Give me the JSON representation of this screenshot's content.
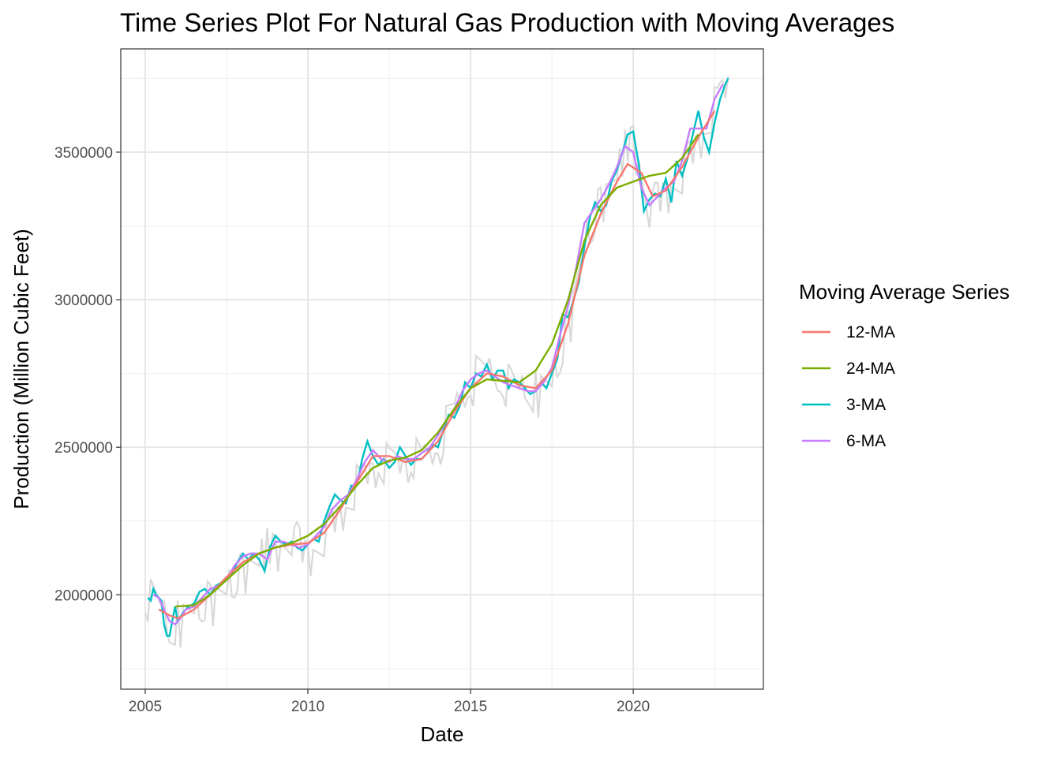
{
  "chart_data": {
    "type": "line",
    "title": "Time Series Plot For Natural Gas Production with Moving Averages",
    "xlabel": "Date",
    "ylabel": "Production (Million Cubic Feet)",
    "xlim": [
      2004.25,
      2024.0
    ],
    "ylim": [
      1680000,
      3850000
    ],
    "x_ticks": [
      2005,
      2010,
      2015,
      2020
    ],
    "y_ticks": [
      2000000,
      2500000,
      3000000,
      3500000
    ],
    "y_tick_labels": [
      "2000000",
      "2500000",
      "3000000",
      "3500000"
    ],
    "grid": true,
    "legend": {
      "title": "Moving Average Series",
      "position": "right",
      "entries": [
        "12-MA",
        "24-MA",
        "3-MA",
        "6-MA"
      ]
    },
    "colors": {
      "raw": "#d9d9d9",
      "12-MA": "#F8766D",
      "24-MA": "#7CAE00",
      "3-MA": "#00BFC4",
      "6-MA": "#C77CFF"
    },
    "raw_anchors": {
      "x": [
        2005.0,
        2005.25,
        2005.5,
        2005.75,
        2006.0,
        2006.5,
        2007.0,
        2007.5,
        2008.0,
        2008.5,
        2009.0,
        2009.5,
        2010.0,
        2010.5,
        2011.0,
        2011.5,
        2012.0,
        2012.5,
        2013.0,
        2013.5,
        2014.0,
        2014.5,
        2015.0,
        2015.5,
        2016.0,
        2016.5,
        2017.0,
        2017.5,
        2018.0,
        2018.5,
        2019.0,
        2019.5,
        2020.0,
        2020.5,
        2021.0,
        2021.5,
        2022.0,
        2022.5,
        2022.92
      ],
      "y": [
        2010000,
        1990000,
        1960000,
        1880000,
        1910000,
        1950000,
        1980000,
        2030000,
        2090000,
        2140000,
        2170000,
        2190000,
        2150000,
        2200000,
        2300000,
        2370000,
        2460000,
        2440000,
        2480000,
        2450000,
        2520000,
        2620000,
        2730000,
        2760000,
        2740000,
        2700000,
        2690000,
        2720000,
        2900000,
        3200000,
        3340000,
        3450000,
        3560000,
        3300000,
        3380000,
        3430000,
        3560000,
        3650000,
        3760000
      ]
    },
    "series": [
      {
        "name": "12-MA",
        "x": [
          2005.42,
          2005.75,
          2006.0,
          2006.5,
          2007.0,
          2007.5,
          2008.0,
          2008.5,
          2009.0,
          2009.5,
          2010.0,
          2010.5,
          2011.0,
          2011.5,
          2012.0,
          2012.5,
          2013.0,
          2013.5,
          2014.0,
          2014.5,
          2015.0,
          2015.5,
          2016.0,
          2016.5,
          2017.0,
          2017.5,
          2018.0,
          2018.5,
          2019.0,
          2019.5,
          2019.83,
          2020.25,
          2020.6,
          2021.0,
          2021.5,
          2022.0,
          2022.5
        ],
        "y": [
          1950000,
          1930000,
          1920000,
          1950000,
          2000000,
          2060000,
          2110000,
          2140000,
          2160000,
          2170000,
          2175000,
          2210000,
          2290000,
          2380000,
          2470000,
          2470000,
          2450000,
          2460000,
          2520000,
          2620000,
          2700000,
          2750000,
          2740000,
          2710000,
          2700000,
          2760000,
          2920000,
          3150000,
          3290000,
          3400000,
          3460000,
          3430000,
          3350000,
          3370000,
          3450000,
          3550000,
          3640000
        ]
      },
      {
        "name": "24-MA",
        "x": [
          2005.92,
          2006.5,
          2007.0,
          2007.5,
          2008.0,
          2008.5,
          2009.0,
          2009.5,
          2010.0,
          2010.5,
          2011.0,
          2011.5,
          2012.0,
          2012.5,
          2013.0,
          2013.5,
          2014.0,
          2014.5,
          2015.0,
          2015.5,
          2016.0,
          2016.5,
          2017.0,
          2017.5,
          2018.0,
          2018.5,
          2019.0,
          2019.5,
          2020.0,
          2020.5,
          2021.0,
          2021.5,
          2022.0
        ],
        "y": [
          1960000,
          1965000,
          2000000,
          2050000,
          2100000,
          2140000,
          2160000,
          2175000,
          2200000,
          2240000,
          2300000,
          2370000,
          2430000,
          2455000,
          2465000,
          2490000,
          2550000,
          2630000,
          2700000,
          2730000,
          2725000,
          2720000,
          2760000,
          2850000,
          3000000,
          3200000,
          3320000,
          3380000,
          3400000,
          3420000,
          3430000,
          3480000,
          3560000
        ]
      },
      {
        "name": "3-MA",
        "x": [
          2005.08,
          2005.17,
          2005.25,
          2005.33,
          2005.42,
          2005.5,
          2005.58,
          2005.67,
          2005.75,
          2005.83,
          2005.92,
          2006.0,
          2006.17,
          2006.33,
          2006.5,
          2006.67,
          2006.83,
          2007.0,
          2007.17,
          2007.33,
          2007.5,
          2007.67,
          2007.83,
          2008.0,
          2008.17,
          2008.33,
          2008.5,
          2008.67,
          2008.83,
          2009.0,
          2009.17,
          2009.33,
          2009.5,
          2009.67,
          2009.83,
          2010.0,
          2010.17,
          2010.33,
          2010.5,
          2010.67,
          2010.83,
          2011.0,
          2011.17,
          2011.33,
          2011.5,
          2011.67,
          2011.83,
          2012.0,
          2012.17,
          2012.33,
          2012.5,
          2012.67,
          2012.83,
          2013.0,
          2013.17,
          2013.33,
          2013.5,
          2013.67,
          2013.83,
          2014.0,
          2014.17,
          2014.33,
          2014.5,
          2014.67,
          2014.83,
          2015.0,
          2015.17,
          2015.33,
          2015.5,
          2015.67,
          2015.83,
          2016.0,
          2016.17,
          2016.33,
          2016.5,
          2016.67,
          2016.83,
          2017.0,
          2017.17,
          2017.33,
          2017.5,
          2017.67,
          2017.83,
          2018.0,
          2018.17,
          2018.33,
          2018.5,
          2018.67,
          2018.83,
          2019.0,
          2019.17,
          2019.33,
          2019.5,
          2019.67,
          2019.83,
          2020.0,
          2020.17,
          2020.33,
          2020.5,
          2020.67,
          2020.83,
          2021.0,
          2021.17,
          2021.33,
          2021.5,
          2021.67,
          2021.83,
          2022.0,
          2022.17,
          2022.33,
          2022.5,
          2022.67,
          2022.83,
          2022.92
        ],
        "y": [
          1990000,
          1980000,
          2020000,
          2000000,
          1990000,
          1980000,
          1900000,
          1860000,
          1860000,
          1910000,
          1960000,
          1910000,
          1940000,
          1960000,
          1970000,
          2010000,
          2020000,
          2000000,
          2030000,
          2040000,
          2060000,
          2070000,
          2110000,
          2140000,
          2120000,
          2140000,
          2120000,
          2080000,
          2160000,
          2200000,
          2180000,
          2170000,
          2180000,
          2160000,
          2150000,
          2170000,
          2190000,
          2180000,
          2250000,
          2300000,
          2340000,
          2320000,
          2310000,
          2370000,
          2370000,
          2460000,
          2520000,
          2470000,
          2440000,
          2460000,
          2430000,
          2450000,
          2500000,
          2470000,
          2440000,
          2460000,
          2460000,
          2480000,
          2510000,
          2500000,
          2560000,
          2610000,
          2600000,
          2640000,
          2720000,
          2700000,
          2750000,
          2740000,
          2780000,
          2730000,
          2760000,
          2760000,
          2700000,
          2730000,
          2720000,
          2700000,
          2680000,
          2690000,
          2720000,
          2700000,
          2750000,
          2800000,
          2950000,
          2940000,
          3000000,
          3060000,
          3180000,
          3280000,
          3330000,
          3300000,
          3320000,
          3400000,
          3440000,
          3500000,
          3560000,
          3570000,
          3460000,
          3300000,
          3340000,
          3360000,
          3350000,
          3410000,
          3330000,
          3470000,
          3420000,
          3480000,
          3560000,
          3640000,
          3550000,
          3500000,
          3600000,
          3680000,
          3730000,
          3750000
        ]
      },
      {
        "name": "6-MA",
        "x": [
          2005.25,
          2005.42,
          2005.58,
          2005.75,
          2005.92,
          2006.08,
          2006.25,
          2006.5,
          2006.75,
          2007.0,
          2007.25,
          2007.5,
          2007.75,
          2008.0,
          2008.25,
          2008.5,
          2008.75,
          2009.0,
          2009.25,
          2009.5,
          2009.75,
          2010.0,
          2010.25,
          2010.5,
          2010.75,
          2011.0,
          2011.25,
          2011.5,
          2011.75,
          2012.0,
          2012.25,
          2012.5,
          2012.75,
          2013.0,
          2013.25,
          2013.5,
          2013.75,
          2014.0,
          2014.25,
          2014.5,
          2014.75,
          2015.0,
          2015.25,
          2015.5,
          2015.75,
          2016.0,
          2016.25,
          2016.5,
          2016.75,
          2017.0,
          2017.25,
          2017.5,
          2017.75,
          2018.0,
          2018.25,
          2018.5,
          2018.75,
          2019.0,
          2019.25,
          2019.5,
          2019.75,
          2020.0,
          2020.25,
          2020.5,
          2020.75,
          2021.0,
          2021.25,
          2021.5,
          2021.75,
          2022.0,
          2022.25,
          2022.5,
          2022.75
        ],
        "y": [
          2000000,
          1990000,
          1950000,
          1910000,
          1900000,
          1920000,
          1950000,
          1960000,
          1990000,
          2020000,
          2030000,
          2050000,
          2100000,
          2130000,
          2140000,
          2140000,
          2120000,
          2180000,
          2180000,
          2170000,
          2160000,
          2170000,
          2200000,
          2230000,
          2290000,
          2320000,
          2340000,
          2390000,
          2450000,
          2490000,
          2460000,
          2450000,
          2470000,
          2460000,
          2460000,
          2480000,
          2500000,
          2540000,
          2590000,
          2630000,
          2690000,
          2730000,
          2750000,
          2760000,
          2740000,
          2720000,
          2710000,
          2700000,
          2690000,
          2690000,
          2720000,
          2770000,
          2880000,
          2980000,
          3110000,
          3260000,
          3300000,
          3340000,
          3390000,
          3450000,
          3520000,
          3500000,
          3380000,
          3320000,
          3350000,
          3380000,
          3400000,
          3470000,
          3580000,
          3580000,
          3580000,
          3680000,
          3730000
        ]
      }
    ]
  }
}
